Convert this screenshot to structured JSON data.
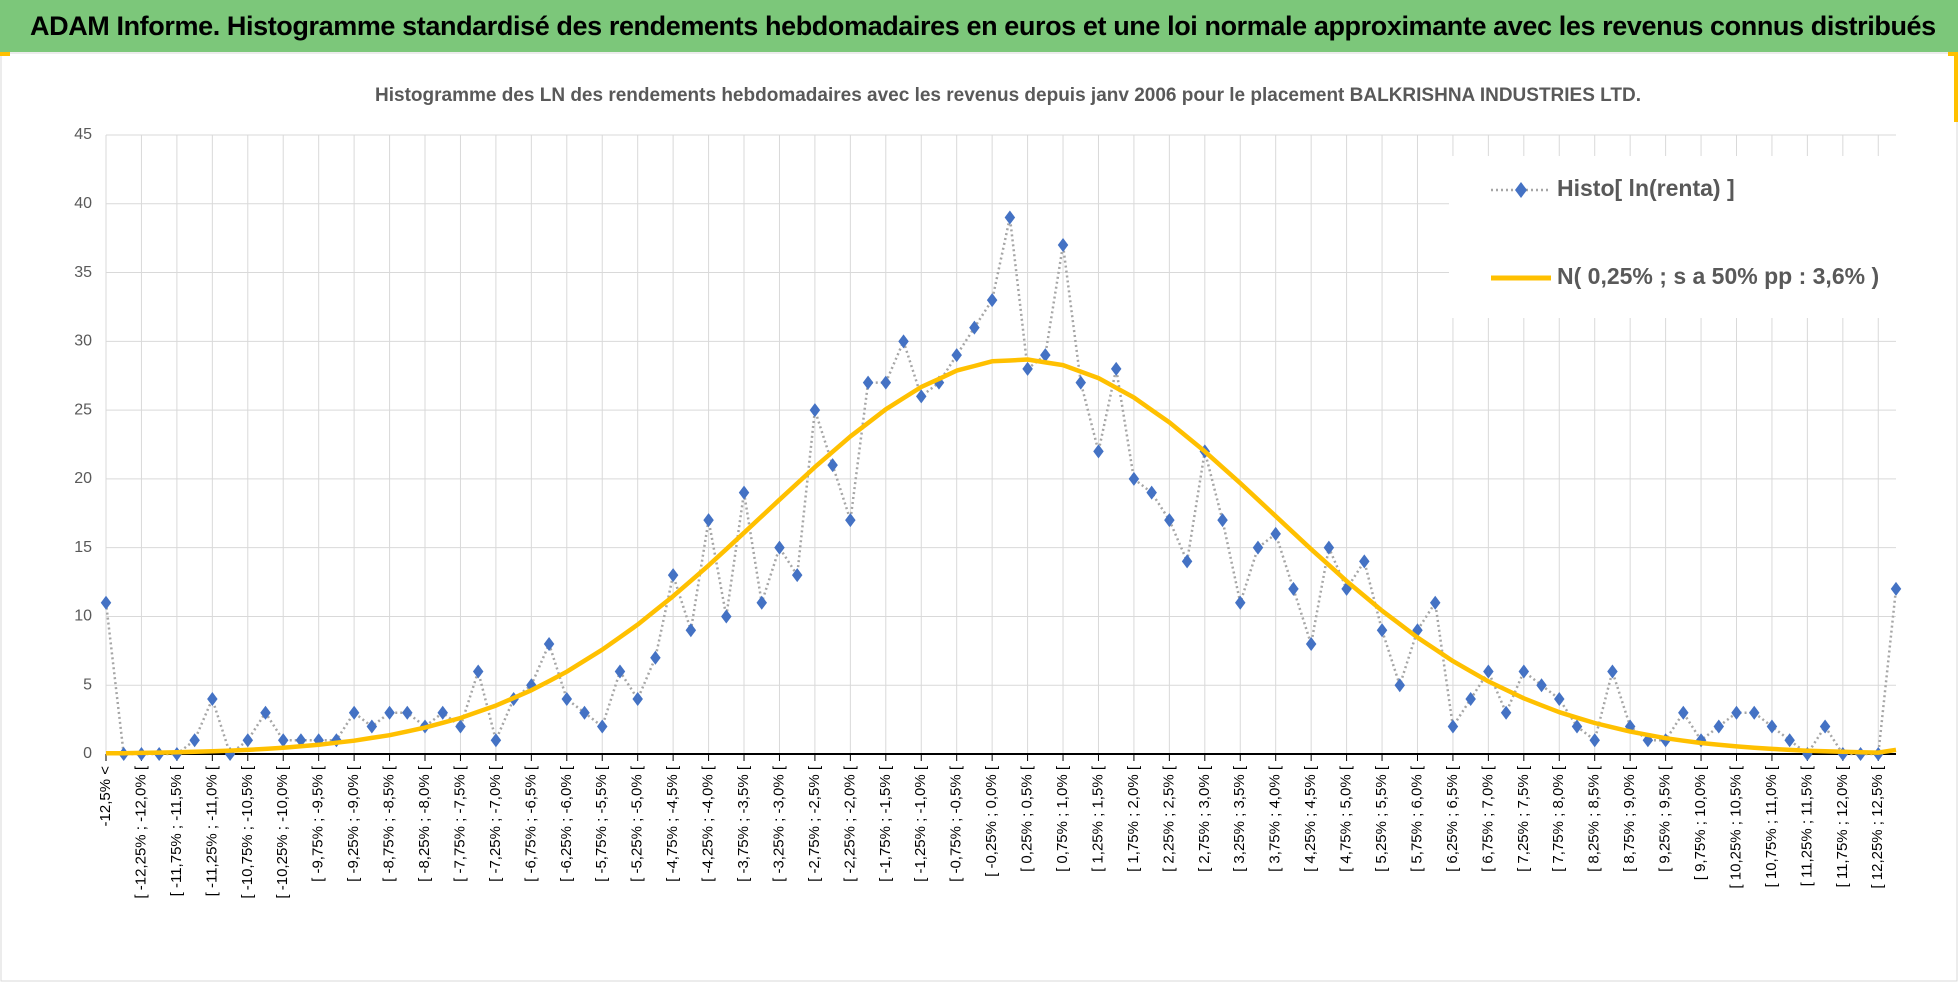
{
  "header": {
    "title": "ADAM Informe. Histogramme standardisé des rendements hebdomadaires en euros et une loi normale approximante avec les revenus connus distribués"
  },
  "chart_data": {
    "type": "line",
    "title": "Histogramme des LN des rendements hebdomadaires avec les revenus depuis janv 2006 pour le placement BALKRISHNA INDUSTRIES LTD.",
    "categories": [
      "-12,5% <",
      null,
      "[ -12,25% ; -12,0% [",
      null,
      "[ -11,75% ; -11,5% [",
      null,
      "[ -11,25% ; -11,0% [",
      null,
      "[ -10,75% ; -10,5% [",
      null,
      "[ -10,25% ; -10,0% [",
      null,
      "[ -9,75% ; -9,5% [",
      null,
      "[ -9,25% ; -9,0% [",
      null,
      "[ -8,75% ; -8,5% [",
      null,
      "[ -8,25% ; -8,0% [",
      null,
      "[ -7,75% ; -7,5% [",
      null,
      "[ -7,25% ; -7,0% [",
      null,
      "[ -6,75% ; -6,5% [",
      null,
      "[ -6,25% ; -6,0% [",
      null,
      "[ -5,75% ; -5,5% [",
      null,
      "[ -5,25% ; -5,0% [",
      null,
      "[ -4,75% ; -4,5% [",
      null,
      "[ -4,25% ; -4,0% [",
      null,
      "[ -3,75% ; -3,5% [",
      null,
      "[ -3,25% ; -3,0% [",
      null,
      "[ -2,75% ; -2,5% [",
      null,
      "[ -2,25% ; -2,0% [",
      null,
      "[ -1,75% ; -1,5% [",
      null,
      "[ -1,25% ; -1,0% [",
      null,
      "[ -0,75% ; -0,5% [",
      null,
      "[ -0,25% ; 0,0% [",
      null,
      "[ 0,25% ; 0,5% [",
      null,
      "[ 0,75% ; 1,0% [",
      null,
      "[ 1,25% ; 1,5% [",
      null,
      "[ 1,75% ; 2,0% [",
      null,
      "[ 2,25% ; 2,5% [",
      null,
      "[ 2,75% ; 3,0% [",
      null,
      "[ 3,25% ; 3,5% [",
      null,
      "[ 3,75% ; 4,0% [",
      null,
      "[ 4,25% ; 4,5% [",
      null,
      "[ 4,75% ; 5,0% [",
      null,
      "[ 5,25% ; 5,5% [",
      null,
      "[ 5,75% ; 6,0% [",
      null,
      "[ 6,25% ; 6,5% [",
      null,
      "[ 6,75% ; 7,0% [",
      null,
      "[ 7,25% ; 7,5% [",
      null,
      "[ 7,75% ; 8,0% [",
      null,
      "[ 8,25% ; 8,5% [",
      null,
      "[ 8,75% ; 9,0% [",
      null,
      "[ 9,25% ; 9,5% [",
      null,
      "[ 9,75% ; 10,0% [",
      null,
      "[ 10,25% ; 10,5% [",
      null,
      "[ 10,75% ; 11,0% [",
      null,
      "[ 11,25% ; 11,5% [",
      null,
      "[ 11,75% ; 12,0% [",
      null,
      "[ 12,25% ; 12,5% [",
      null
    ],
    "series": [
      {
        "name": "Histo[ ln(renta) ]",
        "color": "#4472c4",
        "line_color": "#a6a6a6",
        "marker": "diamond",
        "values": [
          11,
          0,
          0,
          0,
          0,
          1,
          4,
          0,
          1,
          3,
          1,
          1,
          1,
          1,
          3,
          2,
          3,
          3,
          2,
          3,
          2,
          6,
          1,
          4,
          5,
          8,
          4,
          3,
          2,
          6,
          4,
          7,
          13,
          9,
          17,
          10,
          19,
          11,
          15,
          13,
          25,
          21,
          17,
          27,
          27,
          30,
          26,
          27,
          29,
          31,
          33,
          39,
          28,
          29,
          37,
          27,
          22,
          28,
          20,
          19,
          17,
          14,
          22,
          17,
          11,
          15,
          16,
          12,
          8,
          15,
          12,
          14,
          9,
          5,
          9,
          11,
          2,
          4,
          6,
          3,
          6,
          5,
          4,
          2,
          1,
          6,
          2,
          1,
          1,
          3,
          1,
          2,
          3,
          3,
          2,
          1,
          0,
          2,
          0,
          0,
          0,
          12
        ]
      },
      {
        "name": "N( 0,25% ; s a 50% pp : 3,6% )",
        "color": "#ffc000",
        "values": [
          0.05,
          0.06,
          0.08,
          0.1,
          0.12,
          0.16,
          0.2,
          0.25,
          0.3,
          0.37,
          0.45,
          0.56,
          0.67,
          0.82,
          0.97,
          1.17,
          1.37,
          1.64,
          1.92,
          2.27,
          2.62,
          3.07,
          3.52,
          4.07,
          4.63,
          5.3,
          5.98,
          6.78,
          7.58,
          8.49,
          9.41,
          10.44,
          11.47,
          12.59,
          13.71,
          14.89,
          16.08,
          17.28,
          18.49,
          19.67,
          20.86,
          21.97,
          23.09,
          24.07,
          25.06,
          25.87,
          26.68,
          27.27,
          27.87,
          28.21,
          28.55,
          28.61,
          28.68,
          28.47,
          28.27,
          27.8,
          27.33,
          26.62,
          25.92,
          25.01,
          24.11,
          23.05,
          22.0,
          20.84,
          19.69,
          18.49,
          17.29,
          16.09,
          14.89,
          13.73,
          12.57,
          11.49,
          10.42,
          9.44,
          8.47,
          7.61,
          6.75,
          6.01,
          5.28,
          4.66,
          4.05,
          3.54,
          3.04,
          2.64,
          2.25,
          1.94,
          1.63,
          1.39,
          1.15,
          0.97,
          0.8,
          0.67,
          0.55,
          0.46,
          0.37,
          0.3,
          0.24,
          0.2,
          0.16,
          0.13,
          0.1,
          0.3
        ]
      }
    ],
    "ylim": [
      0,
      45
    ],
    "yticks": [
      0,
      5,
      10,
      15,
      20,
      25,
      30,
      35,
      40,
      45
    ],
    "grid": true,
    "legend": "top-right"
  }
}
